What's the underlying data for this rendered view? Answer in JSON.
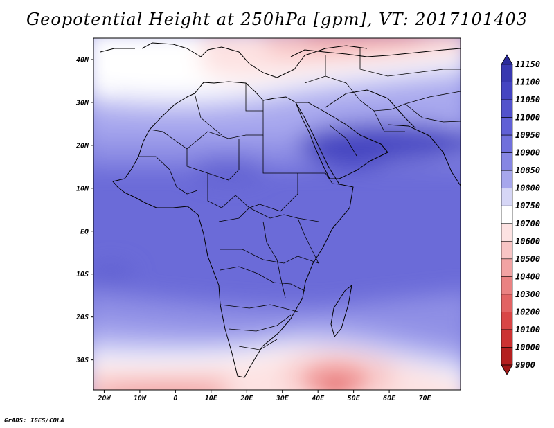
{
  "title": "Geopotential Height at 250hPa [gpm], VT: 2017101403",
  "footer": "GrADS: IGES/COLA",
  "map": {
    "lon_range": [
      -23,
      80
    ],
    "lat_range": [
      -37,
      45
    ],
    "x_ticks": [
      "20W",
      "10W",
      "0",
      "10E",
      "20E",
      "30E",
      "40E",
      "50E",
      "60E",
      "70E"
    ],
    "y_ticks": [
      "40N",
      "30N",
      "20N",
      "10N",
      "EQ",
      "10S",
      "20S",
      "30S"
    ]
  },
  "colorbar": {
    "labels": [
      "11150",
      "11100",
      "11050",
      "11000",
      "10950",
      "10900",
      "10850",
      "10800",
      "10750",
      "10700",
      "10600",
      "10500",
      "10400",
      "10300",
      "10200",
      "10100",
      "10000",
      "9900"
    ],
    "colors": [
      "#2b2b9a",
      "#3838b0",
      "#4545c2",
      "#5252cc",
      "#6060d6",
      "#7070dc",
      "#8686e3",
      "#a6a6ec",
      "#d6d6f6",
      "#ffffff",
      "#fde2e2",
      "#f8c4c4",
      "#f2a3a3",
      "#ea8282",
      "#e26363",
      "#d94646",
      "#cc3232",
      "#b42020",
      "#a01818"
    ]
  }
}
